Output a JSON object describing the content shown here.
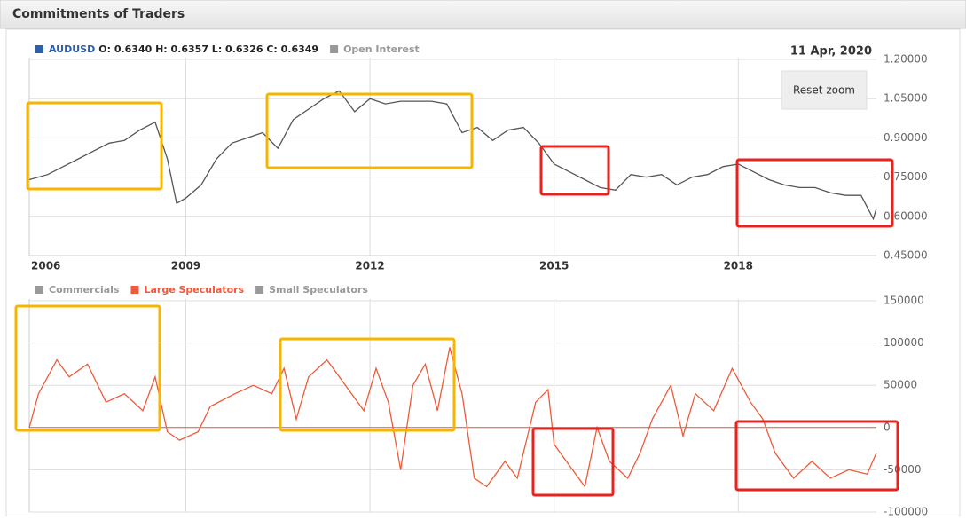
{
  "header": {
    "title": "Commitments of Traders"
  },
  "reset_zoom": "Reset zoom",
  "chart_data": [
    {
      "type": "line",
      "date_label": "11 Apr, 2020",
      "ohlc_label": "O: 0.6340 H: 0.6357 L: 0.6326 C: 0.6349",
      "x": [
        2006.45,
        2006.75,
        2007.0,
        2007.25,
        2007.5,
        2007.75,
        2008.0,
        2008.25,
        2008.5,
        2008.7,
        2008.85,
        2009.0,
        2009.25,
        2009.5,
        2009.75,
        2010.0,
        2010.25,
        2010.5,
        2010.75,
        2011.0,
        2011.25,
        2011.5,
        2011.75,
        2012.0,
        2012.25,
        2012.5,
        2012.75,
        2013.0,
        2013.25,
        2013.5,
        2013.75,
        2014.0,
        2014.25,
        2014.5,
        2014.75,
        2015.0,
        2015.25,
        2015.5,
        2015.75,
        2016.0,
        2016.25,
        2016.5,
        2016.75,
        2017.0,
        2017.25,
        2017.5,
        2017.75,
        2018.0,
        2018.25,
        2018.5,
        2018.75,
        2019.0,
        2019.25,
        2019.5,
        2019.75,
        2020.0,
        2020.2,
        2020.25
      ],
      "series": [
        {
          "name": "AUDUSD",
          "color": "#555555",
          "legend_color": "#2d5faa",
          "values": [
            0.74,
            0.76,
            0.79,
            0.82,
            0.85,
            0.88,
            0.89,
            0.93,
            0.96,
            0.82,
            0.65,
            0.67,
            0.72,
            0.82,
            0.88,
            0.9,
            0.92,
            0.86,
            0.97,
            1.01,
            1.05,
            1.08,
            1.0,
            1.05,
            1.03,
            1.04,
            1.04,
            1.04,
            1.03,
            0.92,
            0.94,
            0.89,
            0.93,
            0.94,
            0.88,
            0.8,
            0.77,
            0.74,
            0.71,
            0.7,
            0.76,
            0.75,
            0.76,
            0.72,
            0.75,
            0.76,
            0.79,
            0.8,
            0.77,
            0.74,
            0.72,
            0.71,
            0.71,
            0.69,
            0.68,
            0.68,
            0.59,
            0.63
          ]
        },
        {
          "name": "Open Interest",
          "color": "#999999",
          "visible": false
        }
      ],
      "xlim": [
        2006.45,
        2020.25
      ],
      "xticks": [
        2006,
        2009,
        2012,
        2015,
        2018
      ],
      "ylim": [
        0.45,
        1.2
      ],
      "yticks": [
        {
          "value": 0.45,
          "label": "0.45000"
        },
        {
          "value": 0.6,
          "label": "0.60000"
        },
        {
          "value": 0.75,
          "label": "0.75000"
        },
        {
          "value": 0.9,
          "label": "0.90000"
        },
        {
          "value": 1.05,
          "label": "1.05000"
        },
        {
          "value": 1.2,
          "label": "1.20000"
        }
      ],
      "grid": true
    },
    {
      "type": "line",
      "x": [
        2006.45,
        2006.6,
        2006.9,
        2007.1,
        2007.4,
        2007.7,
        2008.0,
        2008.3,
        2008.5,
        2008.7,
        2008.9,
        2009.2,
        2009.4,
        2009.8,
        2010.1,
        2010.4,
        2010.6,
        2010.8,
        2011.0,
        2011.3,
        2011.6,
        2011.9,
        2012.1,
        2012.3,
        2012.5,
        2012.7,
        2012.9,
        2013.1,
        2013.3,
        2013.5,
        2013.7,
        2013.9,
        2014.2,
        2014.4,
        2014.7,
        2014.9,
        2015.0,
        2015.3,
        2015.5,
        2015.7,
        2015.9,
        2016.2,
        2016.4,
        2016.6,
        2016.9,
        2017.1,
        2017.3,
        2017.6,
        2017.9,
        2018.2,
        2018.4,
        2018.6,
        2018.9,
        2019.2,
        2019.5,
        2019.8,
        2020.1,
        2020.25
      ],
      "series": [
        {
          "name": "Commercials",
          "color": "#999999",
          "visible": false
        },
        {
          "name": "Large Speculators",
          "color": "#ee5a3a",
          "values": [
            0,
            40000,
            80000,
            60000,
            75000,
            30000,
            40000,
            20000,
            60000,
            -5000,
            -15000,
            -5000,
            25000,
            40000,
            50000,
            40000,
            70000,
            10000,
            60000,
            80000,
            50000,
            20000,
            70000,
            30000,
            -50000,
            50000,
            75000,
            20000,
            95000,
            40000,
            -60000,
            -70000,
            -40000,
            -60000,
            30000,
            45000,
            -20000,
            -50000,
            -70000,
            0,
            -40000,
            -60000,
            -30000,
            10000,
            50000,
            -10000,
            40000,
            20000,
            70000,
            30000,
            10000,
            -30000,
            -60000,
            -40000,
            -60000,
            -50000,
            -55000,
            -30000
          ]
        },
        {
          "name": "Small Speculators",
          "color": "#999999",
          "visible": false
        }
      ],
      "xlim": [
        2006.45,
        2020.25
      ],
      "xticks": [
        2006,
        2009,
        2012,
        2015,
        2018
      ],
      "ylim": [
        -100000,
        150000
      ],
      "yticks": [
        -100000,
        -50000,
        0,
        50000,
        100000,
        150000
      ],
      "grid": true
    }
  ]
}
